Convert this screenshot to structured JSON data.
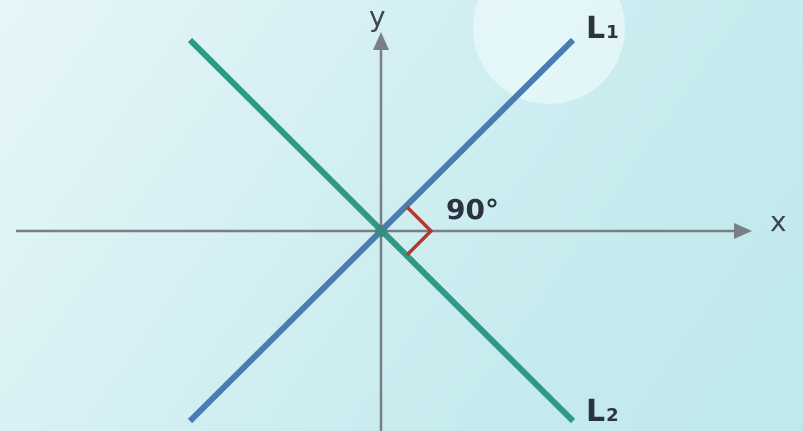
{
  "diagram": {
    "axes": {
      "x_label": "x",
      "y_label": "y"
    },
    "lines": [
      {
        "name": "L",
        "subscript": "1",
        "color": "#4a7cb0"
      },
      {
        "name": "L",
        "subscript": "2",
        "color": "#2e9a86"
      }
    ],
    "angle": {
      "label": "90°",
      "marker_color": "#b03a2e"
    },
    "colors": {
      "axis": "#7a7f85",
      "intersection": "#3a8a84",
      "sun": "#eaf8fb"
    }
  }
}
